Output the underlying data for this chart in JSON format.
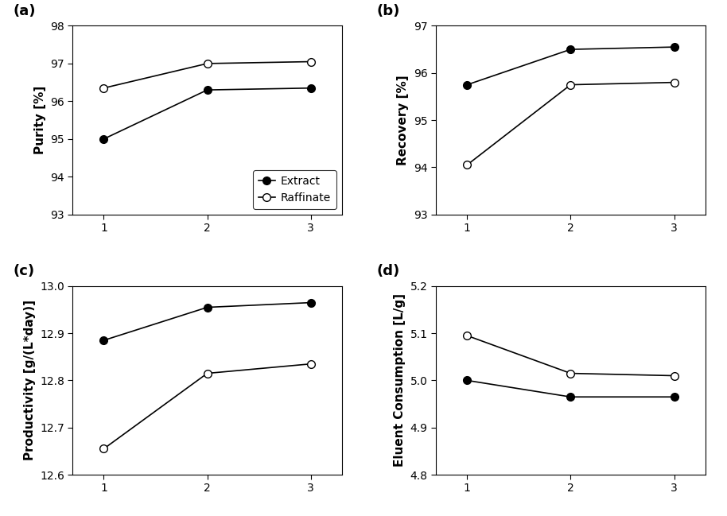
{
  "x": [
    1,
    2,
    3
  ],
  "purity_extract": [
    95.0,
    96.3,
    96.35
  ],
  "purity_raffinate": [
    96.35,
    97.0,
    97.05
  ],
  "purity_ylim": [
    93,
    98
  ],
  "purity_yticks": [
    93,
    94,
    95,
    96,
    97,
    98
  ],
  "recovery_extract": [
    95.75,
    96.5,
    96.55
  ],
  "recovery_raffinate": [
    94.05,
    95.75,
    95.8
  ],
  "recovery_ylim": [
    93,
    97
  ],
  "recovery_yticks": [
    93,
    94,
    95,
    96,
    97
  ],
  "productivity_extract": [
    12.885,
    12.955,
    12.965
  ],
  "productivity_raffinate": [
    12.655,
    12.815,
    12.835
  ],
  "productivity_ylim": [
    12.6,
    13.0
  ],
  "productivity_yticks": [
    12.6,
    12.7,
    12.8,
    12.9,
    13.0
  ],
  "eluent_extract": [
    5.0,
    4.965,
    4.965
  ],
  "eluent_raffinate": [
    5.095,
    5.015,
    5.01
  ],
  "eluent_ylim": [
    4.8,
    5.2
  ],
  "eluent_yticks": [
    4.8,
    4.9,
    5.0,
    5.1,
    5.2
  ],
  "xlabel_ticks": [
    1,
    2,
    3
  ],
  "label_extract": "Extract",
  "label_raffinate": "Raffinate",
  "ylabel_a": "Purity [%]",
  "ylabel_b": "Recovery [%]",
  "ylabel_c": "Productivity [g/(L*day)]",
  "ylabel_d": "Eluent Consumption [L/g]",
  "panel_labels": [
    "(a)",
    "(b)",
    "(c)",
    "(d)"
  ],
  "marker_filled": "o",
  "marker_open": "o",
  "line_color": "black",
  "filled_color": "black",
  "open_facecolor": "white",
  "open_edgecolor": "black",
  "markersize": 7,
  "linewidth": 1.2,
  "fontsize_label": 11,
  "fontsize_tick": 10,
  "fontsize_panel": 13,
  "fontsize_legend": 10,
  "legend_loc": "lower right"
}
